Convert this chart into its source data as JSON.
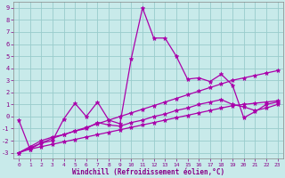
{
  "xlabel": "Windchill (Refroidissement éolien,°C)",
  "bg_color": "#c8eaea",
  "line_color": "#aa00aa",
  "grid_color": "#99cccc",
  "xlim": [
    -0.5,
    23.5
  ],
  "ylim": [
    -3.5,
    9.5
  ],
  "xticks": [
    0,
    1,
    2,
    3,
    4,
    5,
    6,
    7,
    8,
    9,
    10,
    11,
    12,
    13,
    14,
    15,
    16,
    17,
    18,
    19,
    20,
    21,
    22,
    23
  ],
  "yticks": [
    -3,
    -2,
    -1,
    0,
    1,
    2,
    3,
    4,
    5,
    6,
    7,
    8,
    9
  ],
  "series": [
    {
      "x": [
        0,
        1,
        2,
        3,
        4,
        5,
        6,
        7,
        8,
        9,
        10,
        11,
        12,
        13,
        14,
        15,
        16,
        17,
        18,
        19,
        20,
        21,
        22,
        23
      ],
      "y": [
        -0.3,
        -2.7,
        -2.2,
        -2.0,
        -0.2,
        1.1,
        -0.0,
        1.2,
        -0.3,
        -0.6,
        4.8,
        9.0,
        6.5,
        6.5,
        5.0,
        3.1,
        3.2,
        2.9,
        3.5,
        2.6,
        -0.1,
        0.4,
        1.0,
        1.2
      ]
    },
    {
      "x": [
        0,
        1,
        2,
        3,
        4,
        5,
        6,
        7,
        8,
        9,
        10,
        11,
        12,
        13,
        14,
        15,
        16,
        17,
        18,
        19,
        20,
        21,
        22,
        23
      ],
      "y": [
        -3.0,
        -2.5,
        -2.0,
        -1.7,
        -1.5,
        -1.2,
        -1.0,
        -0.5,
        -0.7,
        -0.8,
        -0.5,
        -0.3,
        -0.0,
        0.2,
        0.5,
        0.7,
        1.0,
        1.2,
        1.4,
        1.0,
        0.8,
        0.5,
        0.7,
        1.0
      ]
    },
    {
      "x": [
        0,
        1,
        2,
        3,
        4,
        5,
        6,
        7,
        8,
        9,
        10,
        11,
        12,
        13,
        14,
        15,
        16,
        17,
        18,
        19,
        20,
        21,
        22,
        23
      ],
      "y": [
        -3.0,
        -2.6,
        -2.2,
        -1.8,
        -1.5,
        -1.2,
        -0.9,
        -0.6,
        -0.3,
        0.0,
        0.3,
        0.6,
        0.9,
        1.2,
        1.5,
        1.8,
        2.1,
        2.4,
        2.7,
        3.0,
        3.2,
        3.4,
        3.6,
        3.8
      ]
    },
    {
      "x": [
        0,
        1,
        2,
        3,
        4,
        5,
        6,
        7,
        8,
        9,
        10,
        11,
        12,
        13,
        14,
        15,
        16,
        17,
        18,
        19,
        20,
        21,
        22,
        23
      ],
      "y": [
        -3.0,
        -2.7,
        -2.5,
        -2.3,
        -2.1,
        -1.9,
        -1.7,
        -1.5,
        -1.3,
        -1.1,
        -0.9,
        -0.7,
        -0.5,
        -0.3,
        -0.1,
        0.1,
        0.3,
        0.5,
        0.7,
        0.9,
        1.0,
        1.1,
        1.2,
        1.3
      ]
    }
  ]
}
